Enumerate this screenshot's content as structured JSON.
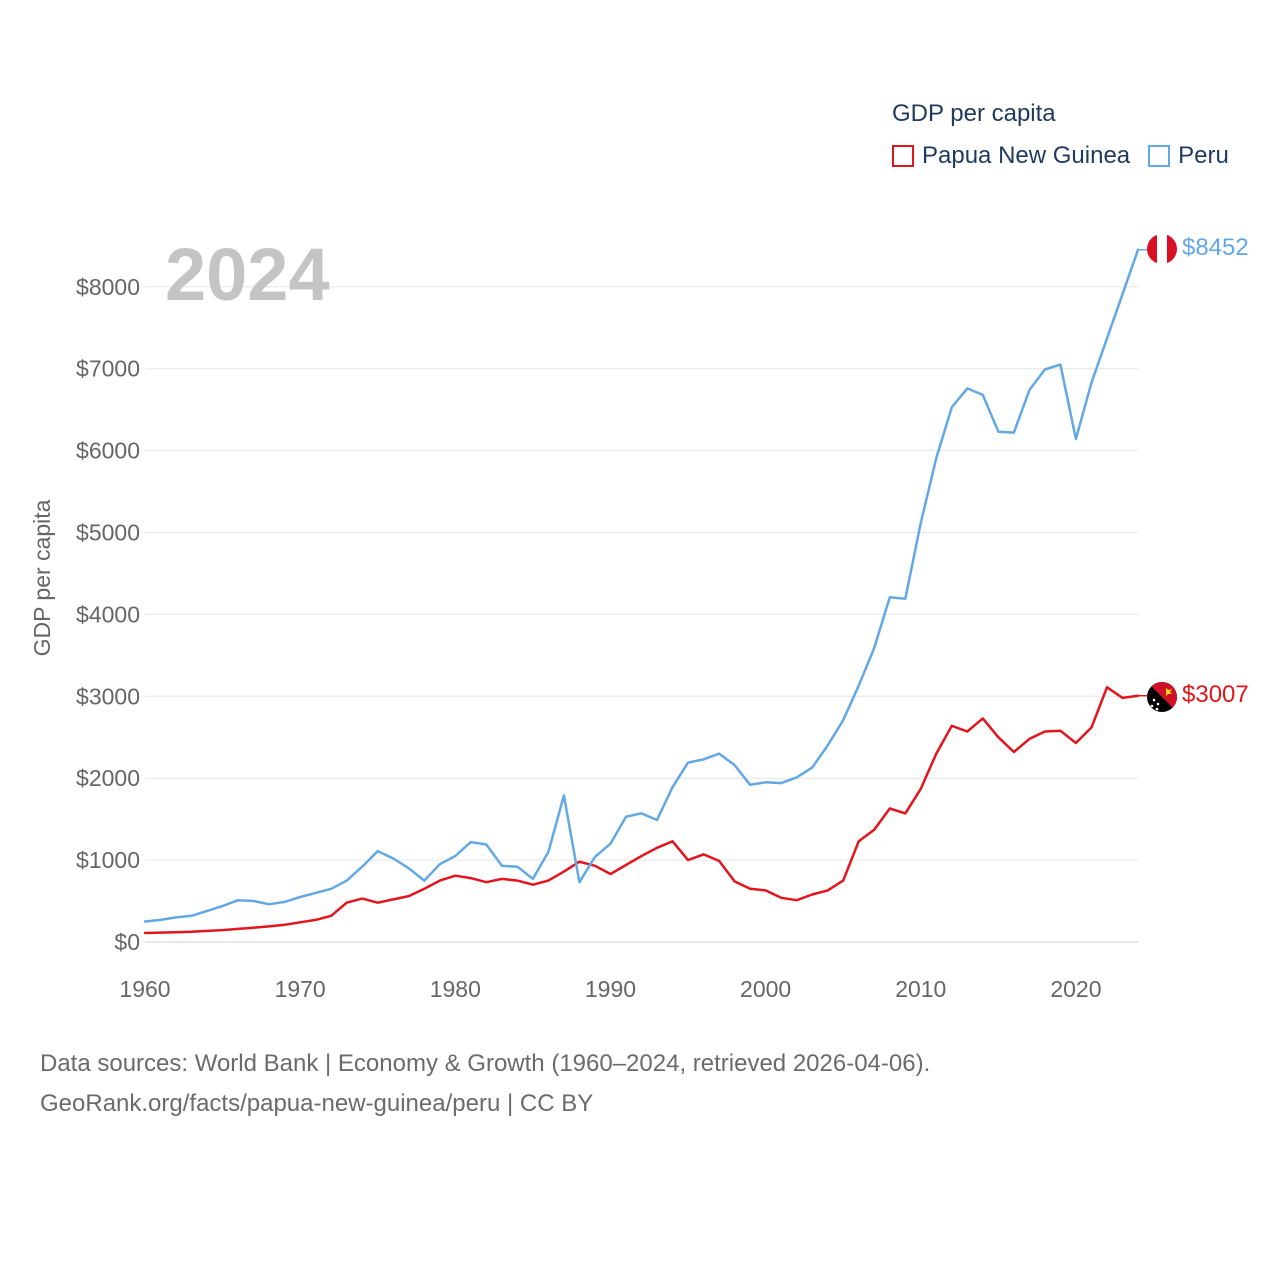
{
  "chart_data": {
    "type": "line",
    "title": "GDP per capita",
    "ylabel": "GDP per capita",
    "xlabel": "",
    "year_watermark": "2024",
    "xlim": [
      1960,
      2024
    ],
    "ylim": [
      0,
      8452
    ],
    "yticks": [
      0,
      1000,
      2000,
      3000,
      4000,
      5000,
      6000,
      7000,
      8000
    ],
    "ytick_labels": [
      "$0",
      "$1000",
      "$2000",
      "$3000",
      "$4000",
      "$5000",
      "$6000",
      "$7000",
      "$8000"
    ],
    "xticks": [
      1960,
      1970,
      1980,
      1990,
      2000,
      2010,
      2020
    ],
    "xtick_labels": [
      "1960",
      "1970",
      "1980",
      "1990",
      "2000",
      "2010",
      "2020"
    ],
    "grid": true,
    "legend_position": "top-right",
    "x": [
      1960,
      1961,
      1962,
      1963,
      1964,
      1965,
      1966,
      1967,
      1968,
      1969,
      1970,
      1971,
      1972,
      1973,
      1974,
      1975,
      1976,
      1977,
      1978,
      1979,
      1980,
      1981,
      1982,
      1983,
      1984,
      1985,
      1986,
      1987,
      1988,
      1989,
      1990,
      1991,
      1992,
      1993,
      1994,
      1995,
      1996,
      1997,
      1998,
      1999,
      2000,
      2001,
      2002,
      2003,
      2004,
      2005,
      2006,
      2007,
      2008,
      2009,
      2010,
      2011,
      2012,
      2013,
      2014,
      2015,
      2016,
      2017,
      2018,
      2019,
      2020,
      2021,
      2022,
      2023,
      2024
    ],
    "series": [
      {
        "name": "Papua New Guinea",
        "color": "#e3141b",
        "end_label": "$3007",
        "flag": "papua-new-guinea-flag",
        "values": [
          110,
          115,
          120,
          125,
          135,
          145,
          160,
          175,
          190,
          210,
          240,
          270,
          320,
          480,
          530,
          480,
          520,
          560,
          650,
          750,
          810,
          780,
          730,
          770,
          750,
          700,
          750,
          860,
          980,
          930,
          830,
          940,
          1050,
          1150,
          1230,
          1000,
          1070,
          990,
          740,
          650,
          630,
          540,
          510,
          580,
          630,
          750,
          1230,
          1370,
          1630,
          1570,
          1870,
          2300,
          2640,
          2570,
          2730,
          2500,
          2320,
          2480,
          2570,
          2580,
          2430,
          2620,
          3110,
          2980,
          3007
        ]
      },
      {
        "name": "Peru",
        "color": "#62a8e5",
        "end_label": "$8452",
        "flag": "peru-flag",
        "values": [
          250,
          270,
          300,
          320,
          380,
          440,
          510,
          500,
          460,
          490,
          550,
          600,
          650,
          750,
          920,
          1110,
          1020,
          900,
          750,
          950,
          1050,
          1220,
          1190,
          930,
          920,
          770,
          1100,
          1790,
          730,
          1040,
          1200,
          1530,
          1570,
          1490,
          1890,
          2190,
          2230,
          2300,
          2160,
          1920,
          1950,
          1940,
          2010,
          2130,
          2400,
          2710,
          3130,
          3590,
          4210,
          4190,
          5120,
          5910,
          6530,
          6760,
          6680,
          6230,
          6220,
          6740,
          6990,
          7050,
          6140,
          6830,
          7370,
          7910,
          8452
        ]
      }
    ]
  },
  "legend": {
    "title": "GDP per capita",
    "items": [
      {
        "label": "Papua New Guinea",
        "color": "#e3141b"
      },
      {
        "label": "Peru",
        "color": "#62a8e5"
      }
    ]
  },
  "footer": {
    "line1": "Data sources: World Bank | Economy & Growth (1960–2024, retrieved 2026-04-06).",
    "line2": "GeoRank.org/facts/papua-new-guinea/peru | CC BY"
  }
}
